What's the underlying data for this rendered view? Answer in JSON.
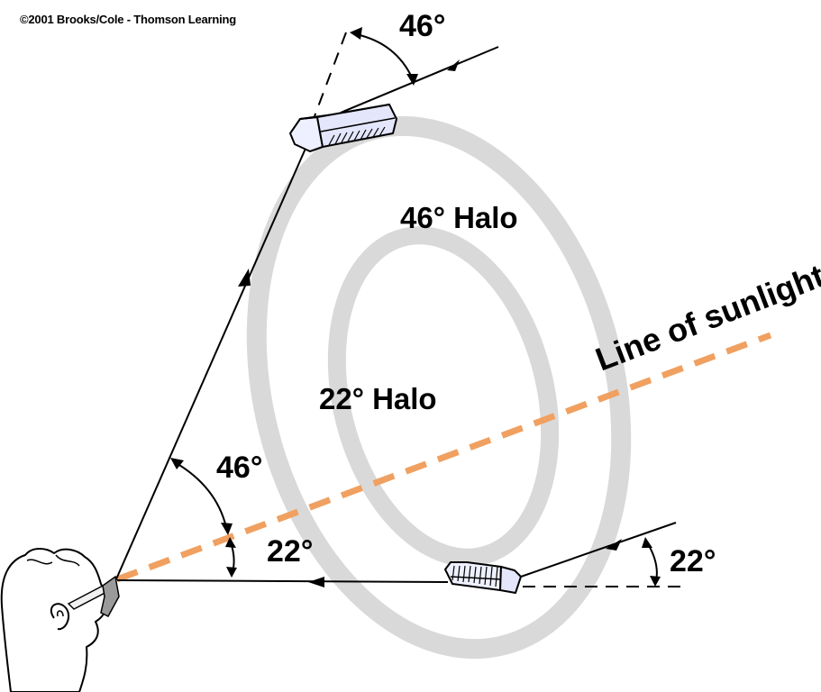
{
  "copyright": "©2001 Brooks/Cole - Thomson Learning",
  "labels": {
    "halo46": "46° Halo",
    "halo22": "22° Halo",
    "line_of_sunlight": "Line of sunlight",
    "angle46_top": "46°",
    "angle46_eye": "46°",
    "angle22_eye": "22°",
    "angle22_right": "22°"
  },
  "colors": {
    "halo_ring": "#d9d9d9",
    "sunlight_line": "#f0a060",
    "crystal_fill": "#eef0ff",
    "ink": "#000000"
  }
}
